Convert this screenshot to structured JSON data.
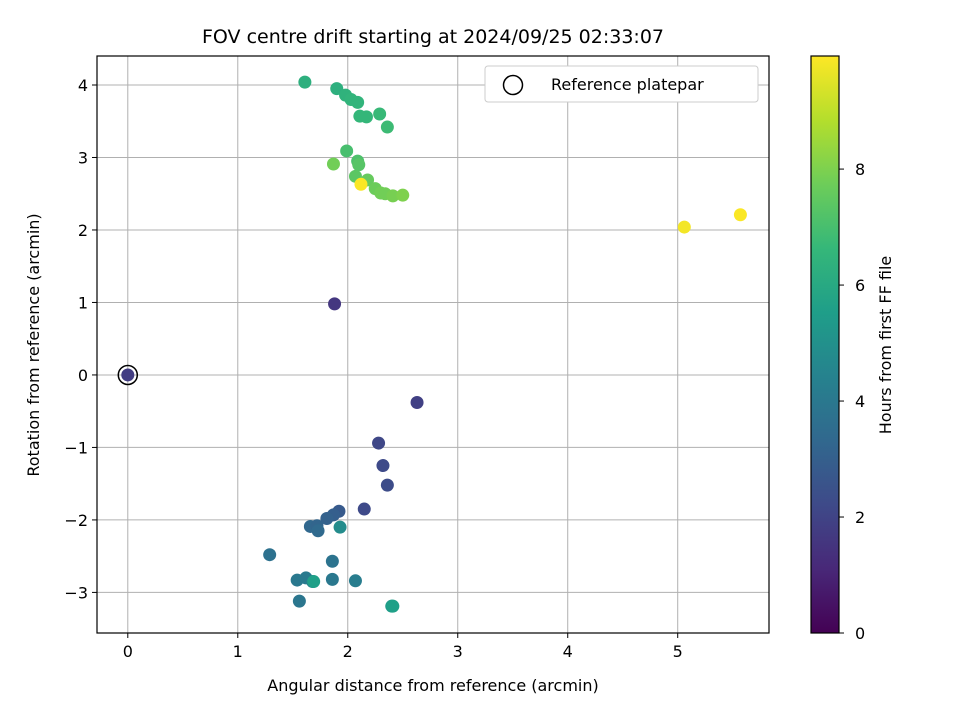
{
  "chart_data": {
    "type": "scatter",
    "title": "FOV centre drift starting at 2024/09/25 02:33:07",
    "xlabel": "Angular distance from reference (arcmin)",
    "ylabel": "Rotation from reference (arcmin)",
    "xlim": [
      -0.28,
      5.83
    ],
    "ylim": [
      -3.56,
      4.4
    ],
    "xticks": [
      "0",
      "1",
      "2",
      "3",
      "4",
      "5"
    ],
    "yticks": [
      "−3",
      "−2",
      "−1",
      "0",
      "1",
      "2",
      "3",
      "4"
    ],
    "xtick_values": [
      0,
      1,
      2,
      3,
      4,
      5
    ],
    "ytick_values": [
      -3,
      -2,
      -1,
      0,
      1,
      2,
      3,
      4
    ],
    "grid": true,
    "legend": {
      "position": "top-right",
      "entries": [
        "Reference platepar"
      ]
    },
    "colorbar": {
      "label": "Hours from first FF file",
      "range": [
        0,
        9.95
      ],
      "colormap": "viridis",
      "ticks": [
        "0",
        "2",
        "4",
        "6",
        "8"
      ],
      "tick_values": [
        0,
        2,
        4,
        6,
        8
      ]
    },
    "reference_point": {
      "x": 0,
      "y": 0
    },
    "points": [
      {
        "x": 0.0,
        "y": 0.0,
        "hours": 1.8
      },
      {
        "x": 1.88,
        "y": 0.98,
        "hours": 1.6
      },
      {
        "x": 2.63,
        "y": -0.38,
        "hours": 1.9
      },
      {
        "x": 2.28,
        "y": -0.94,
        "hours": 2.1
      },
      {
        "x": 2.32,
        "y": -1.25,
        "hours": 2.2
      },
      {
        "x": 2.36,
        "y": -1.52,
        "hours": 2.3
      },
      {
        "x": 2.15,
        "y": -1.85,
        "hours": 2.2
      },
      {
        "x": 1.92,
        "y": -1.88,
        "hours": 2.8
      },
      {
        "x": 1.87,
        "y": -1.93,
        "hours": 3.0
      },
      {
        "x": 1.81,
        "y": -1.98,
        "hours": 3.1
      },
      {
        "x": 1.66,
        "y": -2.09,
        "hours": 3.3
      },
      {
        "x": 1.72,
        "y": -2.08,
        "hours": 3.2
      },
      {
        "x": 1.73,
        "y": -2.15,
        "hours": 3.4
      },
      {
        "x": 1.93,
        "y": -2.1,
        "hours": 4.8
      },
      {
        "x": 1.29,
        "y": -2.48,
        "hours": 3.7
      },
      {
        "x": 1.86,
        "y": -2.57,
        "hours": 3.8
      },
      {
        "x": 1.54,
        "y": -2.83,
        "hours": 4.0
      },
      {
        "x": 1.62,
        "y": -2.8,
        "hours": 4.1
      },
      {
        "x": 1.68,
        "y": -2.85,
        "hours": 4.2
      },
      {
        "x": 1.86,
        "y": -2.82,
        "hours": 4.0
      },
      {
        "x": 2.07,
        "y": -2.84,
        "hours": 4.2
      },
      {
        "x": 1.56,
        "y": -3.12,
        "hours": 3.9
      },
      {
        "x": 1.69,
        "y": -2.85,
        "hours": 5.6
      },
      {
        "x": 2.4,
        "y": -3.19,
        "hours": 5.4
      },
      {
        "x": 2.41,
        "y": -3.19,
        "hours": 5.6
      },
      {
        "x": 1.61,
        "y": 4.04,
        "hours": 6.3
      },
      {
        "x": 1.9,
        "y": 3.95,
        "hours": 6.3
      },
      {
        "x": 1.98,
        "y": 3.86,
        "hours": 6.4
      },
      {
        "x": 2.03,
        "y": 3.8,
        "hours": 6.5
      },
      {
        "x": 2.09,
        "y": 3.76,
        "hours": 6.5
      },
      {
        "x": 2.11,
        "y": 3.57,
        "hours": 6.6
      },
      {
        "x": 2.17,
        "y": 3.56,
        "hours": 6.6
      },
      {
        "x": 2.29,
        "y": 3.6,
        "hours": 6.7
      },
      {
        "x": 2.36,
        "y": 3.42,
        "hours": 6.8
      },
      {
        "x": 1.99,
        "y": 3.09,
        "hours": 7.0
      },
      {
        "x": 2.09,
        "y": 2.95,
        "hours": 7.1
      },
      {
        "x": 2.1,
        "y": 2.9,
        "hours": 7.3
      },
      {
        "x": 1.87,
        "y": 2.91,
        "hours": 7.8
      },
      {
        "x": 2.07,
        "y": 2.74,
        "hours": 7.4
      },
      {
        "x": 2.18,
        "y": 2.69,
        "hours": 7.6
      },
      {
        "x": 2.25,
        "y": 2.57,
        "hours": 7.7
      },
      {
        "x": 2.3,
        "y": 2.51,
        "hours": 7.8
      },
      {
        "x": 2.34,
        "y": 2.5,
        "hours": 7.8
      },
      {
        "x": 2.41,
        "y": 2.47,
        "hours": 7.9
      },
      {
        "x": 2.5,
        "y": 2.48,
        "hours": 8.0
      },
      {
        "x": 2.12,
        "y": 2.63,
        "hours": 9.9
      },
      {
        "x": 5.06,
        "y": 2.04,
        "hours": 9.8
      },
      {
        "x": 5.57,
        "y": 2.21,
        "hours": 9.9
      }
    ]
  }
}
